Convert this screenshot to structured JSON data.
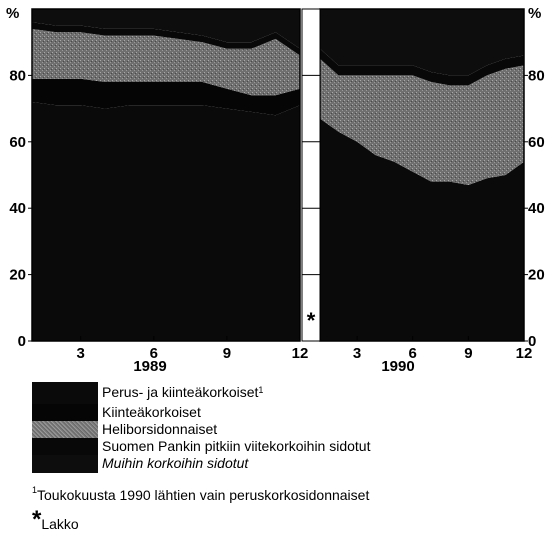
{
  "chart_data": {
    "type": "area",
    "stacked": true,
    "y_unit_left": "%",
    "y_unit_right": "%",
    "ylim": [
      0,
      100
    ],
    "yticks": [
      0,
      20,
      40,
      60,
      80
    ],
    "panels": [
      {
        "year": "1989",
        "x": [
          1,
          2,
          3,
          4,
          5,
          6,
          7,
          8,
          9,
          10,
          11,
          12
        ],
        "xticks": [
          "3",
          "6",
          "9",
          "12"
        ],
        "series": [
          {
            "name": "Perus- ja kiinteäkorkoiset",
            "values": [
              72,
              71,
              71,
              70,
              71,
              71,
              71,
              71,
              70,
              69,
              68,
              71
            ]
          },
          {
            "name": "Kiinteäkorkoiset",
            "values": [
              7,
              8,
              8,
              8,
              7,
              7,
              7,
              7,
              6,
              5,
              6,
              5
            ]
          },
          {
            "name": "Heliborsidonnaiset",
            "values": [
              15,
              14,
              14,
              14,
              14,
              14,
              13,
              12,
              12,
              14,
              17,
              10
            ]
          },
          {
            "name": "Suomen Pankin pitkiin viitekorkoihin sidotut",
            "values": [
              2,
              2,
              2,
              2,
              2,
              2,
              2,
              2,
              2,
              2,
              2,
              2
            ]
          },
          {
            "name": "Muihin korkoihin sidotut",
            "values": [
              4,
              5,
              5,
              6,
              6,
              6,
              7,
              8,
              10,
              10,
              7,
              12
            ]
          }
        ]
      },
      {
        "year": "1990",
        "x": [
          1,
          2,
          3,
          4,
          5,
          6,
          7,
          8,
          9,
          10,
          11,
          12
        ],
        "xticks": [
          "3",
          "6",
          "9",
          "12"
        ],
        "series": [
          {
            "name": "Perus- ja kiinteäkorkoiset",
            "values": [
              67,
              63,
              60,
              56,
              54,
              51,
              48,
              48,
              47,
              49,
              50,
              54
            ]
          },
          {
            "name": "Kiinteäkorkoiset",
            "values": [
              0,
              0,
              0,
              0,
              0,
              0,
              0,
              0,
              0,
              0,
              0,
              0
            ]
          },
          {
            "name": "Heliborsidonnaiset",
            "values": [
              18,
              17,
              20,
              24,
              26,
              29,
              30,
              29,
              30,
              31,
              32,
              29
            ]
          },
          {
            "name": "Suomen Pankin pitkiin viitekorkoihin sidotut",
            "values": [
              3,
              3,
              3,
              3,
              3,
              3,
              3,
              3,
              3,
              3,
              3,
              3
            ]
          },
          {
            "name": "Muihin korkoihin sidotut",
            "values": [
              12,
              17,
              17,
              17,
              17,
              17,
              19,
              20,
              20,
              17,
              15,
              14
            ]
          }
        ]
      }
    ],
    "gap_marker": "*",
    "gap_month": "3"
  },
  "legend": {
    "items": [
      {
        "label": "Perus- ja kiinteäkorkoiset",
        "sup": "1",
        "italic": false,
        "color": "#0a0a0a"
      },
      {
        "label": "Kiinteäkorkoiset",
        "sup": "",
        "italic": false,
        "color": "#050505"
      },
      {
        "label": "Heliborsidonnaiset",
        "sup": "",
        "italic": false,
        "color": "#7a7a7a"
      },
      {
        "label": "Suomen Pankin pitkiin viitekorkoihin sidotut",
        "sup": "",
        "italic": false,
        "color": "#080808"
      },
      {
        "label": "Muihin korkoihin sidotut",
        "sup": "",
        "italic": true,
        "color": "#0d0d0d"
      }
    ]
  },
  "footnote": {
    "sup": "1",
    "text": "Toukokuusta 1990 lähtien vain peruskorkosidonnaiset"
  },
  "strike_note": {
    "marker": "*",
    "text": "Lakko"
  },
  "colors": {
    "background": "#ffffff",
    "dark": "#0a0a0a",
    "grey": "#7a7a7a"
  }
}
